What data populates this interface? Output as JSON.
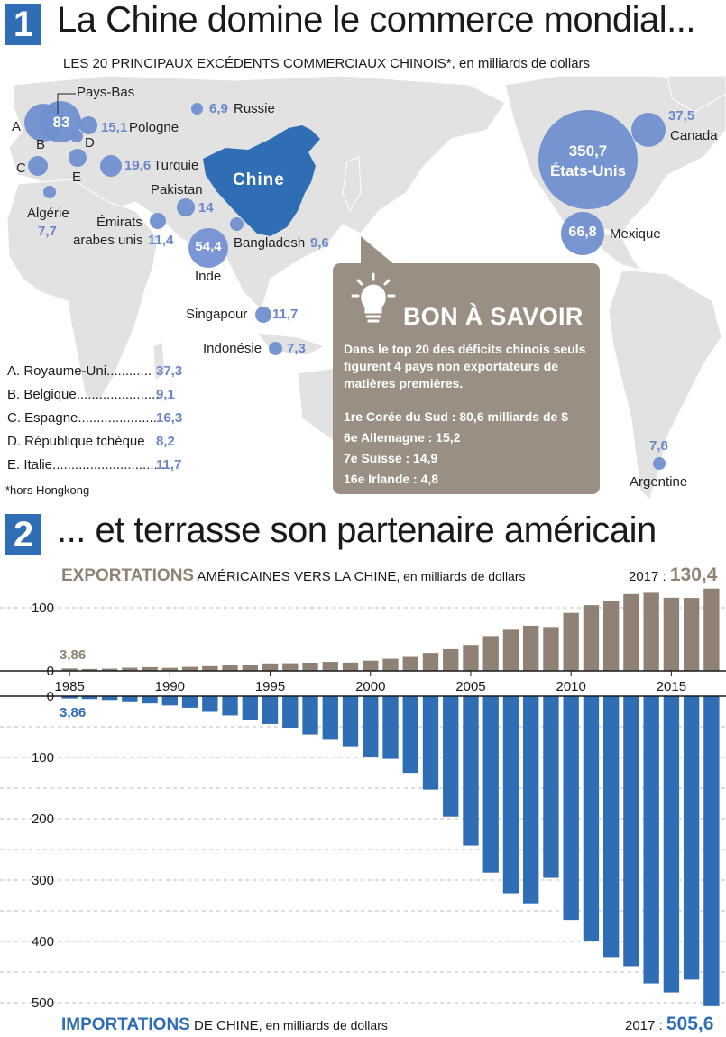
{
  "section1": {
    "number": "1",
    "title": "La Chine domine le commerce mondial...",
    "subtitle_caps": "LES 20 PRINCIPAUX EXCÉDENTS COMMERCIAUX CHINOIS*",
    "subtitle_rest": ", en milliards de dollars",
    "china_label": "Chine",
    "footnote": "*hors Hongkong",
    "countries": {
      "paysbas": {
        "name": "Pays-Bas",
        "value": "83"
      },
      "pologne": {
        "name": "Pologne",
        "value": "15,1"
      },
      "russie": {
        "name": "Russie",
        "value": "6,9"
      },
      "turquie": {
        "name": "Turquie",
        "value": "19,6"
      },
      "pakistan": {
        "name": "Pakistan",
        "value": "14"
      },
      "algerie": {
        "name": "Algérie",
        "value": "7,7"
      },
      "emirats1": {
        "name": "Émirats"
      },
      "emirats2": {
        "name": "arabes unis",
        "value": "11,4"
      },
      "inde": {
        "name": "Inde",
        "value": "54,4"
      },
      "bangladesh": {
        "name": "Bangladesh",
        "value": "9,6"
      },
      "singapour": {
        "name": "Singapour",
        "value": "11,7"
      },
      "indonesie": {
        "name": "Indonésie",
        "value": "7,3"
      },
      "etatsunis": {
        "name": "États-Unis",
        "value": "350,7"
      },
      "canada": {
        "name": "Canada",
        "value": "37,5"
      },
      "mexique": {
        "name": "Mexique",
        "value": "66,8"
      },
      "argentine": {
        "name": "Argentine",
        "value": "7,8"
      }
    },
    "letters": {
      "a": "A",
      "b": "B",
      "c": "C",
      "d": "D",
      "e": "E"
    },
    "legend": [
      {
        "label": "A. Royaume-Uni............",
        "value": "37,3"
      },
      {
        "label": "B. Belgique......................",
        "value": "9,1"
      },
      {
        "label": "C. Espagne......................",
        "value": "16,3"
      },
      {
        "label": "D. République tchèque",
        "value": "8,2"
      },
      {
        "label": "E. Italie...............................",
        "value": "11,7"
      }
    ],
    "callout": {
      "title": "BON À SAVOIR",
      "body": "Dans le top 20 des déficits chinois seuls figurent 4 pays non exportateurs de matières premières.",
      "items": [
        "1re Corée du Sud : 80,6 milliards de $",
        "6e Allemagne : 15,2",
        "7e Suisse : 14,9",
        "16e Irlande : 4,8"
      ]
    },
    "colors": {
      "bubble": "#6f8fcf",
      "china": "#2f6db5",
      "map": "#e2e2e2",
      "callout": "#9a8f83"
    }
  },
  "section2": {
    "number": "2",
    "title": "... et terrasse son partenaire américain",
    "exports_title_strong": "EXPORTATIONS",
    "exports_title_caps": " AMÉRICAINES VERS LA CHINE",
    "exports_title_rest": ", en milliards de dollars",
    "exports_year_note": "2017 : ",
    "exports_year_value": "130,4",
    "exports_first_value": "3,86",
    "imports_title_strong": "IMPORTATIONS",
    "imports_title_caps": " DE CHINE",
    "imports_title_rest": ", en milliards de dollars",
    "imports_year_note": "2017 : ",
    "imports_year_value": "505,6",
    "imports_first_value": "3,86"
  },
  "chart_data": [
    {
      "type": "bar",
      "title": "EXPORTATIONS AMÉRICAINES VERS LA CHINE, en milliards de dollars",
      "x": [
        1985,
        1986,
        1987,
        1988,
        1989,
        1990,
        1991,
        1992,
        1993,
        1994,
        1995,
        1996,
        1997,
        1998,
        1999,
        2000,
        2001,
        2002,
        2003,
        2004,
        2005,
        2006,
        2007,
        2008,
        2009,
        2010,
        2011,
        2012,
        2013,
        2014,
        2015,
        2016,
        2017
      ],
      "values": [
        3.86,
        3.1,
        3.5,
        5.0,
        5.8,
        4.8,
        6.3,
        7.4,
        8.8,
        9.3,
        11.7,
        12.0,
        12.9,
        14.2,
        13.1,
        16.2,
        19.2,
        22.1,
        28.4,
        34.4,
        41.2,
        55.2,
        65.2,
        71.5,
        69.5,
        91.9,
        104.1,
        110.5,
        121.7,
        123.7,
        115.9,
        115.6,
        130.4
      ],
      "ylim": [
        0,
        130
      ],
      "yticks": [
        0,
        100
      ],
      "xticks": [
        1985,
        1990,
        1995,
        2000,
        2005,
        2010,
        2015
      ],
      "color": "#8f8274"
    },
    {
      "type": "bar",
      "title": "IMPORTATIONS DE CHINE, en milliards de dollars",
      "x": [
        1985,
        1986,
        1987,
        1988,
        1989,
        1990,
        1991,
        1992,
        1993,
        1994,
        1995,
        1996,
        1997,
        1998,
        1999,
        2000,
        2001,
        2002,
        2003,
        2004,
        2005,
        2006,
        2007,
        2008,
        2009,
        2010,
        2011,
        2012,
        2013,
        2014,
        2015,
        2016,
        2017
      ],
      "values": [
        3.86,
        4.8,
        6.3,
        8.5,
        12.0,
        15.2,
        19.0,
        25.7,
        31.5,
        38.8,
        45.5,
        51.5,
        62.6,
        71.2,
        81.8,
        100.0,
        102.3,
        125.2,
        152.4,
        196.7,
        243.5,
        287.8,
        321.4,
        337.8,
        296.4,
        364.9,
        399.4,
        425.6,
        440.4,
        468.5,
        483.2,
        462.4,
        505.6
      ],
      "ylim": [
        0,
        505.6
      ],
      "yticks": [
        0,
        100,
        200,
        300,
        400,
        500
      ],
      "direction": "down",
      "color": "#2f6db5"
    }
  ]
}
